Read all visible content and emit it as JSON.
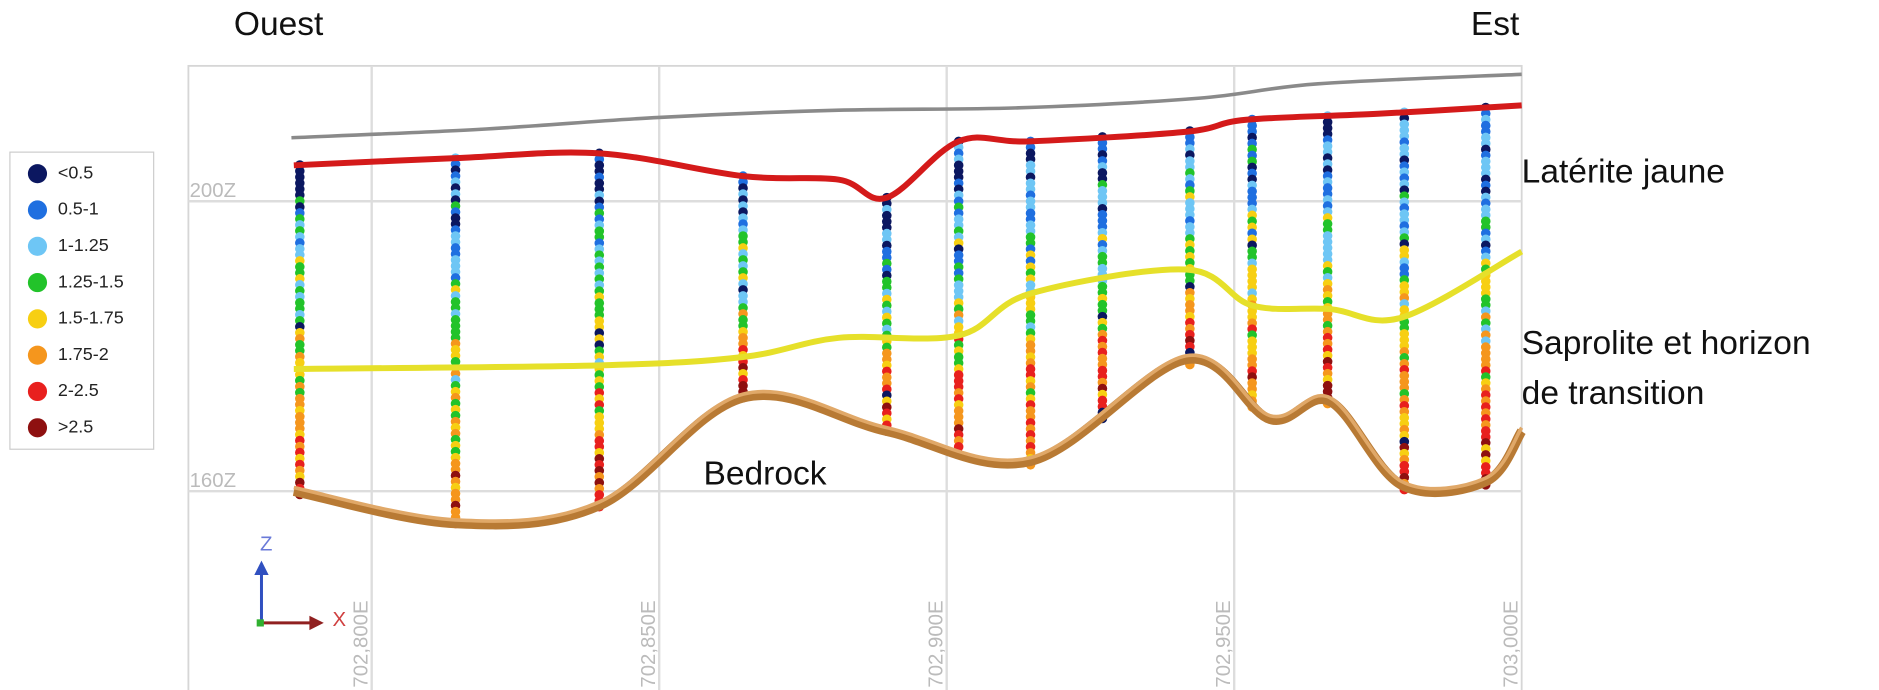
{
  "header": {
    "west": "Ouest",
    "east": "Est"
  },
  "legend": {
    "items": [
      {
        "label": "<0.5",
        "color": "#0b1760"
      },
      {
        "label": "0.5-1",
        "color": "#1f6fe0"
      },
      {
        "label": "1-1.25",
        "color": "#6ec6f5"
      },
      {
        "label": "1.25-1.5",
        "color": "#22c32a"
      },
      {
        "label": "1.5-1.75",
        "color": "#f7cf12"
      },
      {
        "label": "1.75-2",
        "color": "#f5961d"
      },
      {
        "label": "2-2.5",
        "color": "#e8201e"
      },
      {
        "label": ">2.5",
        "color": "#8e1010"
      }
    ]
  },
  "axes": {
    "z_labels": [
      "200Z",
      "160Z"
    ],
    "x_labels": [
      "702,800E",
      "702,850E",
      "702,900E",
      "702,950E",
      "703,000E"
    ],
    "triad": {
      "z": "Z",
      "x": "X"
    }
  },
  "annotations": {
    "laterite": "Latérite jaune",
    "saprolite": [
      "Saprolite et horizon",
      "de transition"
    ],
    "bedrock": "Bedrock"
  }
}
